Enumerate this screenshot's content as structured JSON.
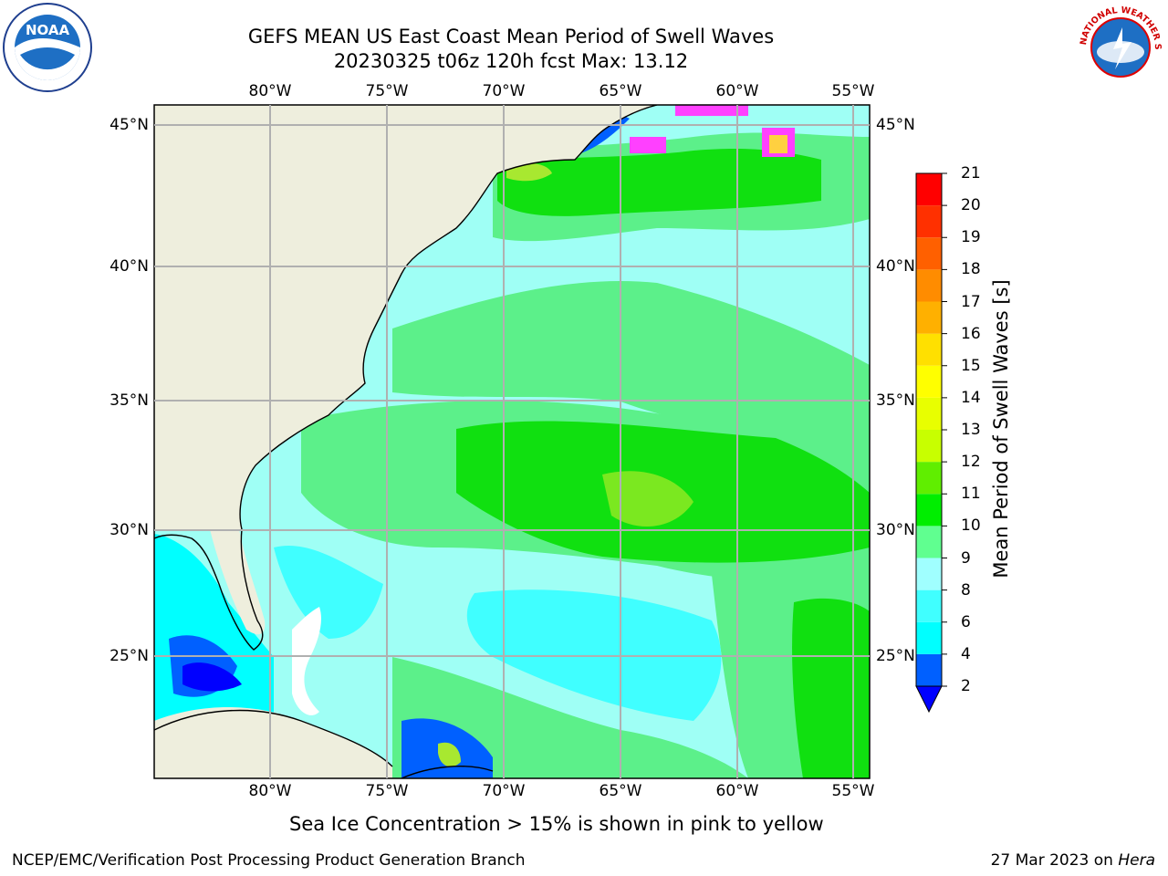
{
  "header": {
    "title_line1": "GEFS MEAN US East Coast Mean Period of Swell Waves",
    "title_line2": "20230325 t06z 120h fcst   Max: 13.12"
  },
  "logos": {
    "left": {
      "name": "noaa-logo",
      "text": "NOAA"
    },
    "right": {
      "name": "nws-logo",
      "text": "NATIONAL WEATHER SERVICE"
    }
  },
  "map": {
    "lon_ticks": [
      "80°W",
      "75°W",
      "70°W",
      "65°W",
      "60°W",
      "55°W"
    ],
    "lat_ticks": [
      "45°N",
      "40°N",
      "35°N",
      "30°N",
      "25°N"
    ],
    "land_color": "#eeeedd",
    "grid_color": "#b0b0b0"
  },
  "colorbar": {
    "label": "Mean Period of Swell Waves [s]",
    "ticks": [
      "2",
      "4",
      "6",
      "8",
      "9",
      "10",
      "11",
      "12",
      "13",
      "14",
      "15",
      "16",
      "17",
      "18",
      "19",
      "20",
      "21"
    ],
    "colors": [
      "#0060ff",
      "#00ffff",
      "#40ffff",
      "#a0ffff",
      "#60ff90",
      "#00ee00",
      "#60ee00",
      "#c8ff00",
      "#e8ff00",
      "#ffff00",
      "#ffe000",
      "#ffb000",
      "#ff8c00",
      "#ff6000",
      "#ff3000",
      "#ff0000"
    ],
    "under_color": "#0000ff"
  },
  "footer": {
    "note": "Sea Ice Concentration > 15% is shown in pink to yellow",
    "left": "NCEP/EMC/Verification Post Processing Product Generation Branch",
    "date": "27 Mar 2023 on ",
    "machine": "Hera"
  }
}
